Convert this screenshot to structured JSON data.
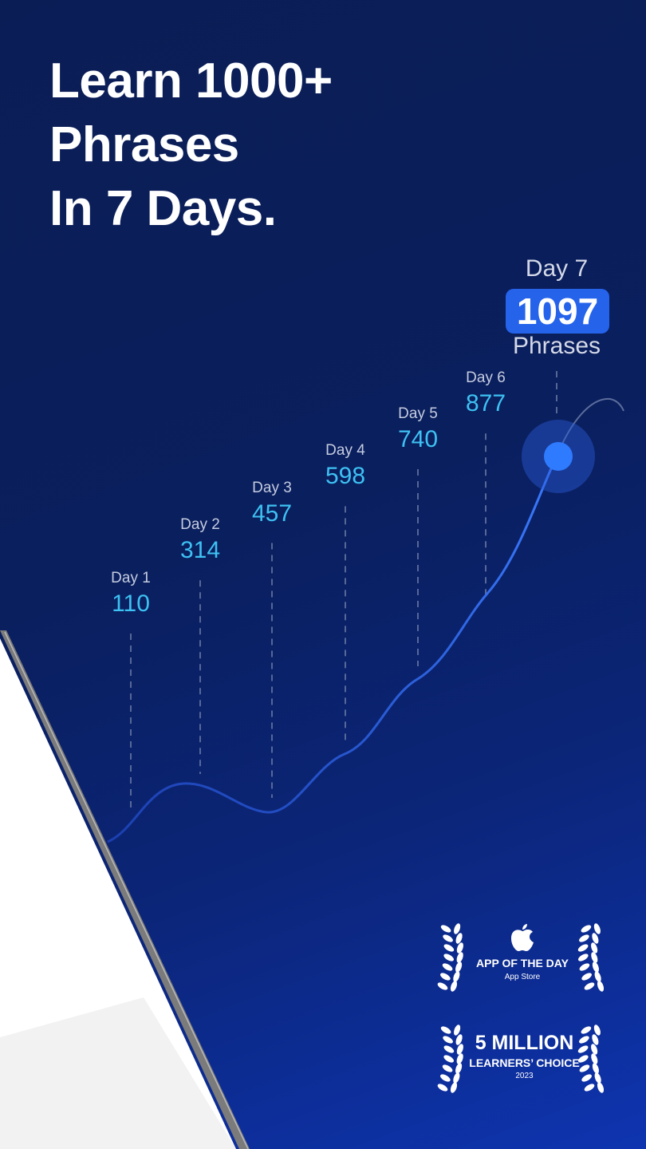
{
  "headline": [
    "Learn 1000+",
    "Phrases",
    "In 7 Days."
  ],
  "chart_data": {
    "type": "line",
    "categories": [
      "Day 1",
      "Day 2",
      "Day 3",
      "Day 4",
      "Day 5",
      "Day 6",
      "Day 7"
    ],
    "values": [
      110,
      314,
      457,
      598,
      740,
      877,
      1097
    ],
    "highlight": {
      "label": "Day 7",
      "value": "1097",
      "unit": "Phrases"
    },
    "colors": {
      "line": "#2f6bf5",
      "value_text": "#3ec1f3",
      "badge": "#2563eb"
    }
  },
  "awards": {
    "app_of_the_day": {
      "icon": "apple-logo",
      "title": "APP OF THE DAY",
      "subtitle": "App Store"
    },
    "learners_choice": {
      "title": "5 MILLION",
      "subtitle": "LEARNERS’ CHOICE",
      "year": "2023"
    }
  }
}
